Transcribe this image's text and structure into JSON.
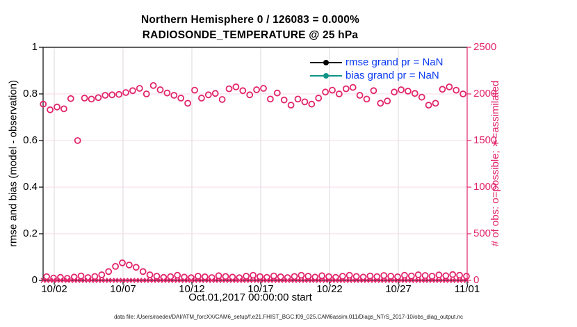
{
  "title": {
    "line1": "Northern Hemisphere 0 / 126083 = 0.000%",
    "line2": "RADIOSONDE_TEMPERATURE @ 25 hPa"
  },
  "footer": {
    "text": "data file: /Users/raeder/DAI/ATM_forcXX/CAM6_setup/f.e21.FHIST_BGC.f09_025.CAM6assim.011/Diags_NTrS_2017-10/obs_diag_output.nc"
  },
  "legend": {
    "items": [
      {
        "name": "rmse",
        "label": "rmse grand pr = NaN",
        "color": "#000000"
      },
      {
        "name": "bias",
        "label": "bias grand pr = NaN",
        "color": "#109488"
      }
    ],
    "text_color": "#0c3bf0"
  },
  "colors": {
    "accent_pink": "#e2246a",
    "grid_pink": "#f6d9e4",
    "grid_gray": "#ddd5dd",
    "spine_black": "#000000",
    "legend_blue": "#0c3bf0",
    "bias_teal": "#109488"
  },
  "chart_data": {
    "type": "scatter",
    "title": "Northern Hemisphere 0 / 126083 = 0.000%",
    "subtitle": "RADIOSONDE_TEMPERATURE @ 25 hPa",
    "xlabel": "Oct.01,2017 00:00:00 start",
    "ylabel_left": "rmse and bias (model - observation)",
    "ylabel_right": "# of obs: o=possible; ∗=assimilated",
    "grid": true,
    "x_axis": {
      "tick_labels": [
        "10/02",
        "10/07",
        "10/12",
        "10/17",
        "10/22",
        "10/27",
        "11/01"
      ],
      "tick_days": [
        2,
        7,
        12,
        17,
        22,
        27,
        32
      ],
      "domain_days": [
        1.19,
        32
      ]
    },
    "y_left": {
      "range": [
        0,
        1
      ],
      "tick_labels": [
        "0",
        "0.2",
        "0.4",
        "0.6",
        "0.8",
        "1"
      ],
      "tick_values": [
        0,
        0.2,
        0.4,
        0.6,
        0.8,
        1
      ]
    },
    "y_right": {
      "range": [
        0,
        2500
      ],
      "tick_labels": [
        "0",
        "500",
        "1000",
        "1500",
        "2000",
        "2500"
      ],
      "tick_values": [
        0,
        500,
        1000,
        1500,
        2000,
        2500
      ]
    },
    "gridline_values_right": [
      500,
      1000,
      1500,
      2000
    ],
    "series": [
      {
        "name": "num_possible_major_synoptic",
        "axis": "right",
        "marker": "o",
        "color": "#e2246a",
        "day_start": 1.2,
        "day_step": 0.5,
        "values": [
          1890,
          1830,
          1860,
          1840,
          1950,
          1500,
          1955,
          1945,
          1960,
          1985,
          1990,
          1995,
          2015,
          2035,
          2060,
          2000,
          2090,
          2045,
          2010,
          1985,
          1955,
          1900,
          2040,
          1955,
          1990,
          2005,
          1940,
          2055,
          2075,
          2035,
          1990,
          2045,
          2060,
          1945,
          2010,
          1935,
          1880,
          1945,
          1915,
          1890,
          1955,
          2020,
          2040,
          2000,
          2055,
          2070,
          1985,
          1945,
          2035,
          1900,
          1925,
          2020,
          2045,
          2030,
          2005,
          1965,
          1880,
          1900,
          2050,
          2075,
          2040,
          2000
        ]
      },
      {
        "name": "num_possible_off_synoptic",
        "axis": "right",
        "marker": "o",
        "color": "#e2246a",
        "day_start": 1.45,
        "day_step": 0.5,
        "values": [
          40,
          25,
          32,
          22,
          35,
          48,
          30,
          42,
          60,
          95,
          150,
          188,
          165,
          140,
          95,
          60,
          45,
          32,
          40,
          55,
          35,
          28,
          45,
          38,
          30,
          50,
          42,
          35,
          28,
          45,
          55,
          40,
          32,
          48,
          38,
          30,
          42,
          55,
          45,
          35,
          50,
          40,
          32,
          45,
          55,
          42,
          35,
          48,
          40,
          52,
          45,
          38,
          55,
          48,
          60,
          52,
          45,
          58,
          50,
          62,
          55,
          45
        ]
      },
      {
        "name": "num_assimilated",
        "axis": "right",
        "marker": "x",
        "color": "#e2246a",
        "day_start": 1.2,
        "day_step": 0.25,
        "count": 124,
        "constant_value": 0
      },
      {
        "name": "rmse",
        "axis": "left",
        "color": "#000000",
        "values": "NaN"
      },
      {
        "name": "bias",
        "axis": "left",
        "color": "#109488",
        "values": "NaN"
      }
    ]
  }
}
